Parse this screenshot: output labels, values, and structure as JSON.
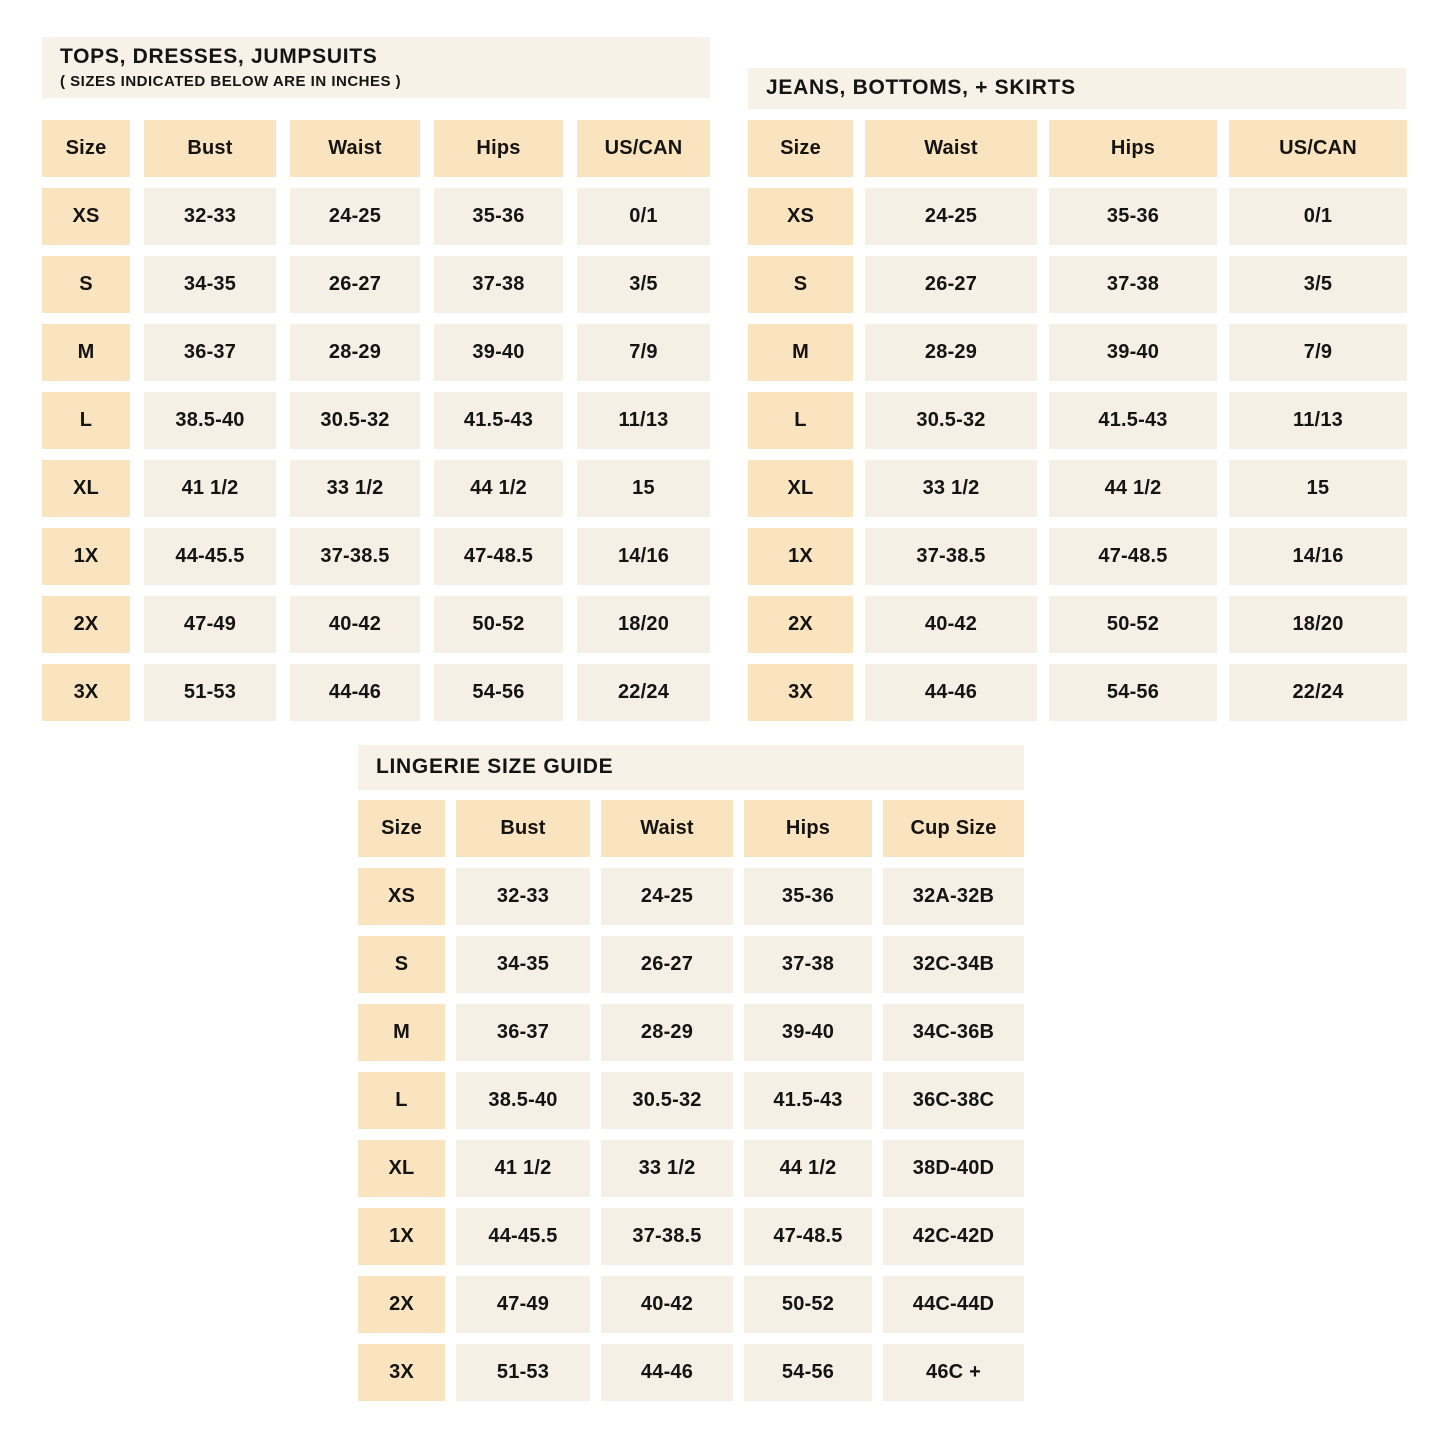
{
  "colors": {
    "page_background": "#ffffff",
    "header_cell": "#fae4bf",
    "data_cell": "#f6efe5",
    "title_band": "#f7f1e7",
    "text": "#141414"
  },
  "tables": [
    {
      "id": "tops",
      "title": "TOPS, DRESSES, JUMPSUITS",
      "subtitle": "( SIZES INDICATED BELOW ARE IN INCHES )",
      "columns": [
        "Size",
        "Bust",
        "Waist",
        "Hips",
        "US/CAN"
      ],
      "rows": [
        [
          "XS",
          "32-33",
          "24-25",
          "35-36",
          "0/1"
        ],
        [
          "S",
          "34-35",
          "26-27",
          "37-38",
          "3/5"
        ],
        [
          "M",
          "36-37",
          "28-29",
          "39-40",
          "7/9"
        ],
        [
          "L",
          "38.5-40",
          "30.5-32",
          "41.5-43",
          "11/13"
        ],
        [
          "XL",
          "41 1/2",
          "33 1/2",
          "44 1/2",
          "15"
        ],
        [
          "1X",
          "44-45.5",
          "37-38.5",
          "47-48.5",
          "14/16"
        ],
        [
          "2X",
          "47-49",
          "40-42",
          "50-52",
          "18/20"
        ],
        [
          "3X",
          "51-53",
          "44-46",
          "54-56",
          "22/24"
        ]
      ]
    },
    {
      "id": "jeans",
      "title": "JEANS, BOTTOMS, + SKIRTS",
      "subtitle": "",
      "columns": [
        "Size",
        "Waist",
        "Hips",
        "US/CAN"
      ],
      "rows": [
        [
          "XS",
          "24-25",
          "35-36",
          "0/1"
        ],
        [
          "S",
          "26-27",
          "37-38",
          "3/5"
        ],
        [
          "M",
          "28-29",
          "39-40",
          "7/9"
        ],
        [
          "L",
          "30.5-32",
          "41.5-43",
          "11/13"
        ],
        [
          "XL",
          "33 1/2",
          "44 1/2",
          "15"
        ],
        [
          "1X",
          "37-38.5",
          "47-48.5",
          "14/16"
        ],
        [
          "2X",
          "40-42",
          "50-52",
          "18/20"
        ],
        [
          "3X",
          "44-46",
          "54-56",
          "22/24"
        ]
      ]
    },
    {
      "id": "lingerie",
      "title": "LINGERIE SIZE GUIDE",
      "subtitle": "",
      "columns": [
        "Size",
        "Bust",
        "Waist",
        "Hips",
        "Cup Size"
      ],
      "rows": [
        [
          "XS",
          "32-33",
          "24-25",
          "35-36",
          "32A-32B"
        ],
        [
          "S",
          "34-35",
          "26-27",
          "37-38",
          "32C-34B"
        ],
        [
          "M",
          "36-37",
          "28-29",
          "39-40",
          "34C-36B"
        ],
        [
          "L",
          "38.5-40",
          "30.5-32",
          "41.5-43",
          "36C-38C"
        ],
        [
          "XL",
          "41 1/2",
          "33 1/2",
          "44 1/2",
          "38D-40D"
        ],
        [
          "1X",
          "44-45.5",
          "37-38.5",
          "47-48.5",
          "42C-42D"
        ],
        [
          "2X",
          "47-49",
          "40-42",
          "50-52",
          "44C-44D"
        ],
        [
          "3X",
          "51-53",
          "44-46",
          "54-56",
          "46C +"
        ]
      ]
    }
  ]
}
